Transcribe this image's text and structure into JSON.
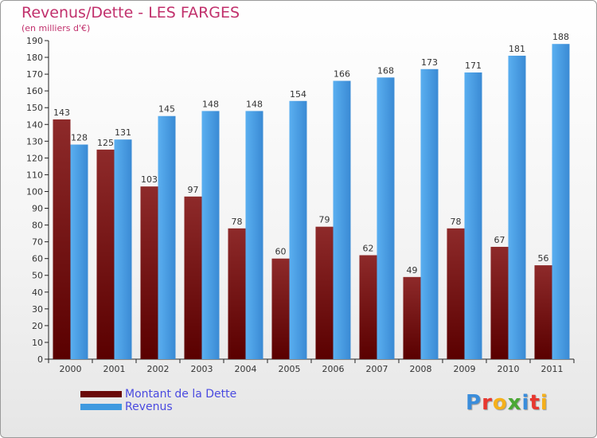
{
  "title": "Revenus/Dette - LES FARGES",
  "subtitle": "(en milliers d'€)",
  "colors": {
    "dette": "#7a1414",
    "revenus": "#3f9ae0",
    "title": "#c1306c"
  },
  "logo": {
    "text": "Proxiti",
    "letters": [
      {
        "ch": "P",
        "color": "#3a8ddb"
      },
      {
        "ch": "r",
        "color": "#e8372f"
      },
      {
        "ch": "o",
        "color": "#f5b01a"
      },
      {
        "ch": "x",
        "color": "#4aa834"
      },
      {
        "ch": "i",
        "color": "#3a8ddb"
      },
      {
        "ch": "t",
        "color": "#e8372f"
      },
      {
        "ch": "i",
        "color": "#f5b01a"
      }
    ]
  },
  "chart_data": {
    "type": "bar",
    "title": "Revenus/Dette - LES FARGES",
    "subtitle": "(en milliers d'€)",
    "categories": [
      "2000",
      "2001",
      "2002",
      "2003",
      "2004",
      "2005",
      "2006",
      "2007",
      "2008",
      "2009",
      "2010",
      "2011"
    ],
    "series": [
      {
        "name": "Montant de la Dette",
        "values": [
          143,
          125,
          103,
          97,
          78,
          60,
          79,
          62,
          49,
          78,
          67,
          56
        ]
      },
      {
        "name": "Revenus",
        "values": [
          128,
          131,
          145,
          148,
          148,
          154,
          166,
          168,
          173,
          171,
          181,
          188
        ]
      }
    ],
    "ylim": [
      0,
      190
    ],
    "ytick_step": 10,
    "grid": false,
    "legend_position": "bottom-left"
  }
}
